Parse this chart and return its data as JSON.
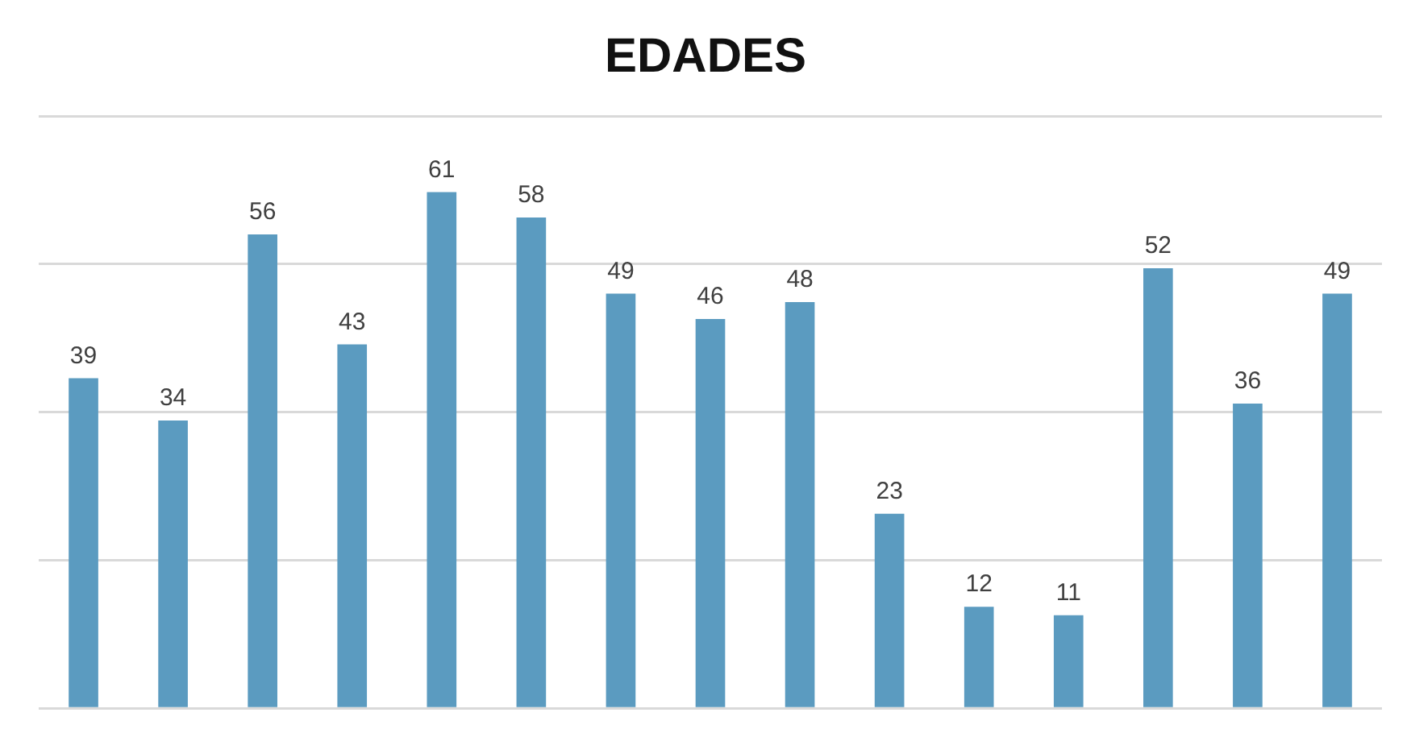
{
  "chart_data": {
    "type": "bar",
    "title": "EDADES",
    "categories": [
      null,
      null,
      null,
      null,
      null,
      null,
      null,
      null,
      null,
      null,
      null,
      null,
      null,
      null,
      null
    ],
    "values": [
      39,
      34,
      56,
      43,
      61,
      58,
      49,
      46,
      48,
      23,
      12,
      11,
      52,
      36,
      49
    ],
    "color": "#5b9bc0",
    "ylim": [
      0,
      70
    ],
    "yticks": [
      {
        "value": 0,
        "label": null
      },
      {
        "value": 17.5,
        "label": null
      },
      {
        "value": 35,
        "label": null
      },
      {
        "value": 52.5,
        "label": null
      },
      {
        "value": 70,
        "label": null
      }
    ],
    "grid": "y",
    "data_labels": true,
    "legend": false
  }
}
